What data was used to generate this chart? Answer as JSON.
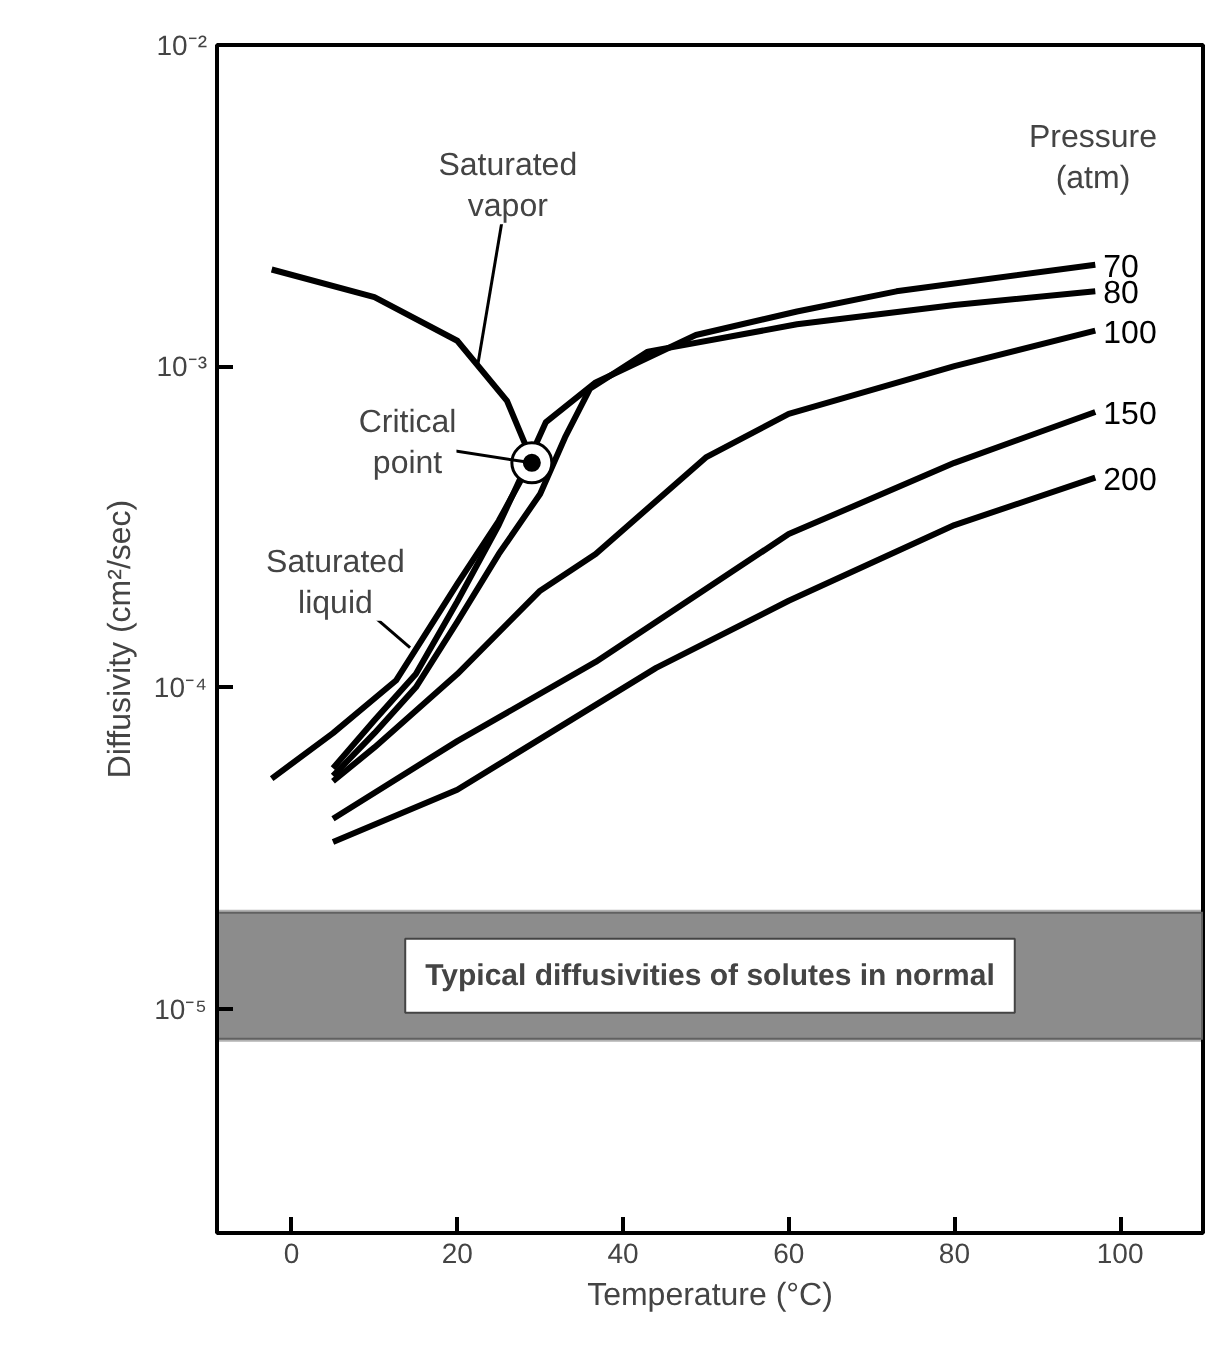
{
  "chart_data": {
    "type": "line",
    "xlabel": "Temperature (°C)",
    "ylabel": "Diffusivity (cm²/sec)",
    "legend_title": "Pressure (atm)",
    "xlim": [
      -9,
      110
    ],
    "xticks": [
      0,
      20,
      40,
      60,
      80,
      100
    ],
    "ylim": [
      2e-06,
      0.01
    ],
    "log": "y",
    "yticks": [
      {
        "value": 0.01,
        "label": "10⁻²"
      },
      {
        "value": 0.001,
        "label": "10⁻³"
      },
      {
        "value": 0.0001,
        "label": "10⁻⁴"
      },
      {
        "value": 1e-05,
        "label": "10⁻⁵"
      }
    ],
    "grid": false,
    "line_style": "solid",
    "series": [
      {
        "color": "#000000",
        "x": [
          -2.4,
          10,
          20,
          26,
          29
        ],
        "values": [
          0.002,
          0.00164,
          0.0012,
          0.00078,
          0.00051
        ]
      },
      {
        "color": "#000000",
        "x": [
          -2.4,
          5,
          12.6,
          20,
          25,
          29
        ],
        "values": [
          5.2e-05,
          7.2e-05,
          0.000105,
          0.00021,
          0.00033,
          0.00051
        ]
      },
      {
        "name": "70",
        "color": "#000000",
        "x": [
          5,
          10,
          15,
          20,
          25,
          28,
          30.7,
          36.7,
          48.8,
          61,
          73,
          97
        ],
        "values": [
          5.6e-05,
          7.9e-05,
          0.00011,
          0.000185,
          0.00032,
          0.00047,
          0.00067,
          0.00089,
          0.00125,
          0.00148,
          0.00171,
          0.00207
        ]
      },
      {
        "name": "80",
        "color": "#000000",
        "x": [
          5,
          10,
          15,
          20,
          25,
          30,
          33,
          36,
          43,
          61,
          80,
          97
        ],
        "values": [
          5.3e-05,
          7.2e-05,
          0.0001,
          0.00016,
          0.00026,
          0.0004,
          0.0006,
          0.00085,
          0.00111,
          0.00135,
          0.00155,
          0.00171
        ]
      },
      {
        "name": "100",
        "color": "#000000",
        "x": [
          5,
          10,
          20,
          30,
          36.7,
          50,
          60,
          80,
          97
        ],
        "values": [
          5.1e-05,
          6.5e-05,
          0.00011,
          0.0002,
          0.00026,
          0.00052,
          0.00071,
          0.001,
          0.00129
        ]
      },
      {
        "name": "150",
        "color": "#000000",
        "x": [
          5,
          20,
          36.7,
          60,
          80,
          97
        ],
        "values": [
          3.9e-05,
          6.8e-05,
          0.00012,
          0.0003,
          0.0005,
          0.00072
        ]
      },
      {
        "name": "200",
        "color": "#000000",
        "x": [
          5,
          20,
          44,
          60,
          80,
          97
        ],
        "values": [
          3.3e-05,
          4.8e-05,
          0.000115,
          0.000186,
          0.00032,
          0.00045
        ]
      },
      {
        "type": "scatter",
        "marker": "circle",
        "color": "#000000",
        "x": [
          29
        ],
        "values": [
          0.0005
        ]
      }
    ],
    "bands": [
      {
        "axis": "y",
        "from": 8e-06,
        "to": 2e-05,
        "label": "Typical diffusivities of solutes in normal",
        "color": "#8c8c8c"
      }
    ],
    "annotations": [
      {
        "text": "Saturated vapor",
        "x": 22.5,
        "y": 0.00102
      },
      {
        "text": "Critical point",
        "x": 29,
        "y": 0.0005
      },
      {
        "text": "Saturated liquid",
        "x": 14.3,
        "y": 0.000133
      }
    ]
  }
}
